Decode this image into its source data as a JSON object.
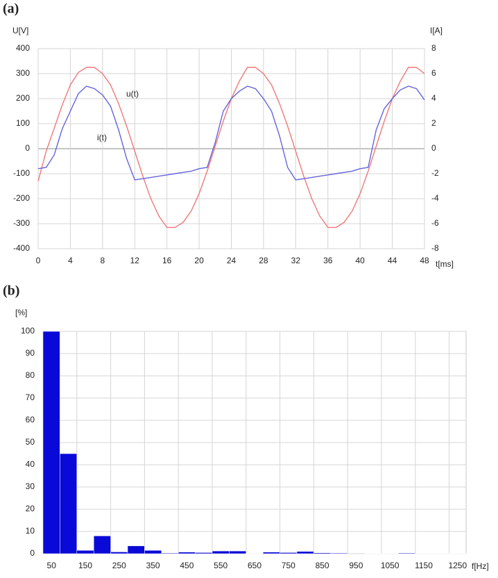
{
  "chart_data": [
    {
      "type": "line",
      "label": "(a)",
      "ylabel": "U[V]",
      "y2label": "I[A]",
      "xlabel": "t[ms]",
      "x": [
        0,
        1,
        2,
        3,
        4,
        5,
        6,
        7,
        8,
        9,
        10,
        11,
        12,
        13,
        14,
        15,
        16,
        17,
        18,
        19,
        20,
        21,
        22,
        23,
        24,
        25,
        26,
        27,
        28,
        29,
        30,
        31,
        32,
        33,
        34,
        35,
        36,
        37,
        38,
        39,
        40,
        41,
        42,
        43,
        44,
        45,
        46,
        47,
        48
      ],
      "series": [
        {
          "name": "u(t)",
          "color": "#f07878",
          "values": [
            -130,
            -10,
            82,
            175,
            255,
            305,
            325,
            325,
            300,
            255,
            180,
            90,
            -10,
            -110,
            -200,
            -270,
            -315,
            -315,
            -295,
            -250,
            -180,
            -90,
            10,
            110,
            200,
            270,
            325,
            325,
            300,
            255,
            180,
            90,
            -10,
            -110,
            -200,
            -270,
            -315,
            -315,
            -295,
            -250,
            -180,
            -90,
            10,
            110,
            200,
            270,
            325,
            325,
            300
          ]
        },
        {
          "name": "i(t)",
          "color": "#6464dc",
          "axis": "y2",
          "values": [
            -1.6,
            -1.5,
            -0.5,
            1.6,
            3.0,
            4.4,
            5.0,
            4.8,
            4.3,
            3.4,
            1.5,
            -0.8,
            -2.5,
            -2.4,
            -2.3,
            -2.2,
            -2.1,
            -2.0,
            -1.9,
            -1.8,
            -1.6,
            -1.5,
            0.5,
            3.0,
            4.0,
            4.6,
            5.0,
            4.8,
            4.0,
            3.0,
            1.0,
            -1.5,
            -2.5,
            -2.4,
            -2.3,
            -2.2,
            -2.1,
            -2.0,
            -1.9,
            -1.8,
            -1.6,
            -1.5,
            1.5,
            3.2,
            4.0,
            4.7,
            5.0,
            4.8,
            3.9
          ]
        }
      ],
      "xlim": [
        0,
        48
      ],
      "xticks": [
        0,
        4,
        8,
        12,
        16,
        20,
        24,
        28,
        32,
        36,
        40,
        44,
        48
      ],
      "ylim": [
        -400,
        400
      ],
      "yticks": [
        -400,
        -300,
        -200,
        -100,
        0,
        100,
        200,
        300,
        400
      ],
      "y2lim": [
        -8,
        8
      ],
      "y2ticks": [
        -8,
        -6,
        -4,
        -2,
        0,
        2,
        4,
        6,
        8
      ],
      "grid": true
    },
    {
      "type": "bar",
      "label": "(b)",
      "ylabel": "[%]",
      "xlabel": "f[Hz]",
      "color": "#0a0ad8",
      "categories": [
        50,
        null,
        150,
        null,
        250,
        null,
        350,
        null,
        450,
        null,
        550,
        null,
        650,
        null,
        750,
        null,
        850,
        null,
        950,
        null,
        1050,
        null,
        1150,
        null,
        1250
      ],
      "values": [
        100,
        45,
        1.5,
        8,
        0.8,
        3.5,
        1.5,
        0.3,
        0.7,
        0.5,
        1.2,
        1.2,
        0.1,
        0.7,
        0.5,
        1.0,
        0.4,
        0.3,
        0,
        0.1,
        0.1,
        0.3,
        0.1,
        0.1,
        0.1
      ],
      "ylim": [
        0,
        100
      ],
      "yticks": [
        0,
        10,
        20,
        30,
        40,
        50,
        60,
        70,
        80,
        90,
        100
      ],
      "grid": true
    }
  ]
}
